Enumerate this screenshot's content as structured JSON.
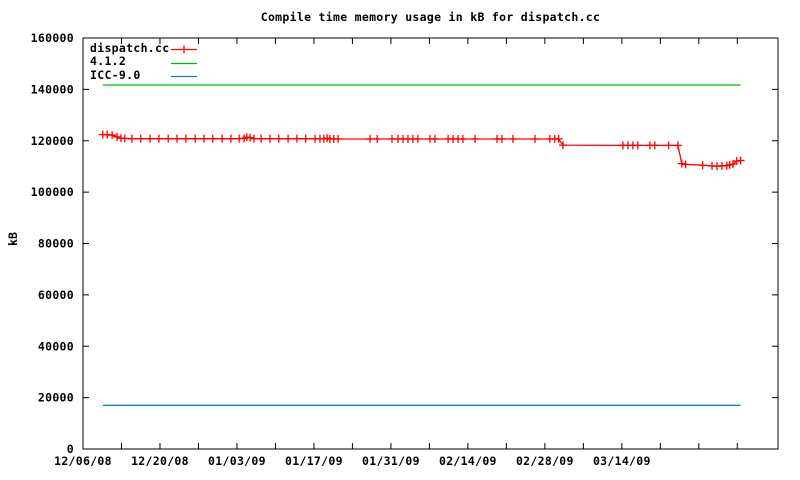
{
  "chart_data": {
    "type": "line",
    "title": "Compile time memory usage in kB for dispatch.cc",
    "xlabel": "",
    "ylabel": "kB",
    "ylim": [
      0,
      160000
    ],
    "xlim_days_from_first_tick": [
      0,
      126.4
    ],
    "x_first_tick_date": "12/06/08",
    "grid": false,
    "legend_position": "top-left-inside",
    "axis_color": "#000000",
    "yticks": [
      0,
      20000,
      40000,
      60000,
      80000,
      100000,
      120000,
      140000,
      160000
    ],
    "xticks_labeled": [
      {
        "day": 0,
        "label": "12/06/08"
      },
      {
        "day": 14,
        "label": "12/20/08"
      },
      {
        "day": 28,
        "label": "01/03/09"
      },
      {
        "day": 42,
        "label": "01/17/09"
      },
      {
        "day": 56,
        "label": "01/31/09"
      },
      {
        "day": 70,
        "label": "02/14/09"
      },
      {
        "day": 84,
        "label": "02/28/09"
      },
      {
        "day": 98,
        "label": "03/14/09"
      }
    ],
    "xticks_minor_days": [
      7,
      21,
      35,
      49,
      63,
      77,
      91,
      105,
      112,
      119
    ],
    "series": [
      {
        "name": "dispatch.cc",
        "color": "#ff0000",
        "marker": "plus",
        "points": [
          [
            3.6,
            122400
          ],
          [
            4.4,
            122400
          ],
          [
            5.3,
            122200
          ],
          [
            6.2,
            121500
          ],
          [
            6.9,
            121000
          ],
          [
            7.6,
            120900
          ],
          [
            8.9,
            120800
          ],
          [
            10.5,
            120800
          ],
          [
            12.2,
            120800
          ],
          [
            13.8,
            120800
          ],
          [
            15.5,
            120800
          ],
          [
            17.1,
            120800
          ],
          [
            18.7,
            120800
          ],
          [
            20.4,
            120800
          ],
          [
            22.0,
            120800
          ],
          [
            23.6,
            120800
          ],
          [
            25.3,
            120800
          ],
          [
            26.9,
            120800
          ],
          [
            28.4,
            120800
          ],
          [
            29.3,
            120900
          ],
          [
            29.8,
            121400
          ],
          [
            30.4,
            121200
          ],
          [
            31.1,
            120800
          ],
          [
            32.4,
            120800
          ],
          [
            34.0,
            120800
          ],
          [
            35.6,
            120800
          ],
          [
            37.3,
            120800
          ],
          [
            38.9,
            120800
          ],
          [
            40.5,
            120800
          ],
          [
            42.2,
            120800
          ],
          [
            43.1,
            120800
          ],
          [
            43.8,
            120800
          ],
          [
            44.4,
            121000
          ],
          [
            44.9,
            120700
          ],
          [
            45.6,
            120700
          ],
          [
            46.4,
            120700
          ],
          [
            52.2,
            120700
          ],
          [
            53.5,
            120700
          ],
          [
            56.2,
            120700
          ],
          [
            57.3,
            120700
          ],
          [
            58.2,
            120700
          ],
          [
            59.1,
            120700
          ],
          [
            60.0,
            120700
          ],
          [
            60.9,
            120700
          ],
          [
            63.1,
            120700
          ],
          [
            64.0,
            120700
          ],
          [
            66.4,
            120700
          ],
          [
            67.3,
            120700
          ],
          [
            68.2,
            120700
          ],
          [
            69.1,
            120700
          ],
          [
            71.3,
            120700
          ],
          [
            75.3,
            120700
          ],
          [
            76.2,
            120700
          ],
          [
            78.2,
            120700
          ],
          [
            82.2,
            120700
          ],
          [
            84.9,
            120700
          ],
          [
            85.8,
            120700
          ],
          [
            86.5,
            120700
          ],
          [
            87.3,
            118300
          ],
          [
            98.2,
            118200
          ],
          [
            99.1,
            118200
          ],
          [
            100.0,
            118200
          ],
          [
            100.9,
            118200
          ],
          [
            103.1,
            118200
          ],
          [
            104.0,
            118200
          ],
          [
            106.5,
            118200
          ],
          [
            108.2,
            118200
          ],
          [
            108.9,
            111100
          ],
          [
            109.6,
            110800
          ],
          [
            112.7,
            110500
          ],
          [
            114.4,
            110200
          ],
          [
            115.3,
            110100
          ],
          [
            116.2,
            110200
          ],
          [
            117.1,
            110300
          ],
          [
            117.6,
            110600
          ],
          [
            118.2,
            110900
          ],
          [
            118.9,
            112100
          ],
          [
            119.6,
            112300
          ]
        ]
      },
      {
        "name": "4.1.2",
        "color": "#00bb00",
        "marker": "none",
        "points": [
          [
            3.6,
            141700
          ],
          [
            119.6,
            141700
          ]
        ]
      },
      {
        "name": "ICC-9.0",
        "color": "#0e7fd8",
        "marker": "none",
        "points": [
          [
            3.6,
            17000
          ],
          [
            119.6,
            17000
          ]
        ]
      }
    ]
  }
}
